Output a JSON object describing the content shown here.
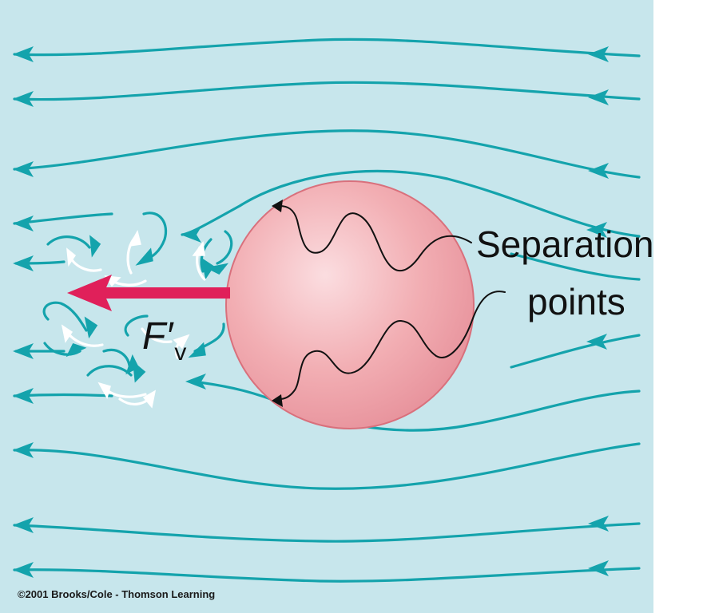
{
  "labels": {
    "separation_line1": "Separation",
    "separation_line2": "points",
    "force_symbol": "F′",
    "force_subscript": "v",
    "copyright": "©2001 Brooks/Cole - Thomson Learning"
  },
  "colors": {
    "fluid_background": "#c7e6ec",
    "streamline": "#14a3ac",
    "sphere_fill": "#f2aeb3",
    "sphere_edge": "#d9707c",
    "force_arrow": "#e0205a",
    "eddy": "#ffffff",
    "pointer": "#111111"
  }
}
